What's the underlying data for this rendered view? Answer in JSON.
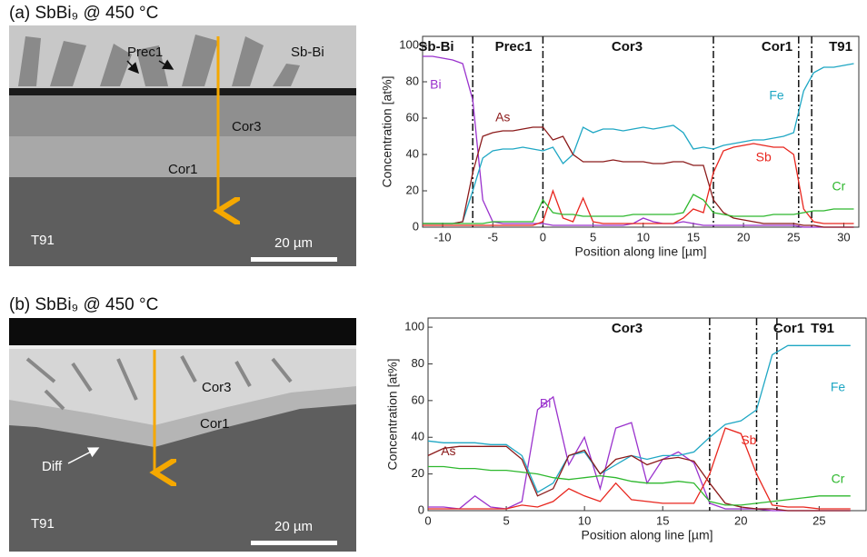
{
  "panels": [
    {
      "title": "(a) SbBi₉ @ 450 °C",
      "labels": [
        "Prec1",
        "Sb-Bi",
        "Cor3",
        "Cor1",
        "T91"
      ],
      "scale_bar": "20 µm"
    },
    {
      "title": "(b) SbBi₉ @ 450 °C",
      "labels": [
        "Cor3",
        "Cor1",
        "Diff",
        "T91"
      ],
      "scale_bar": "20 µm"
    }
  ],
  "chart_data": [
    {
      "type": "line",
      "xlabel": "Position along line [µm]",
      "ylabel": "Concentration [at%]",
      "xlim": [
        -12,
        31.5
      ],
      "ylim": [
        0,
        105
      ],
      "xticks": [
        -10,
        -5,
        0,
        5,
        10,
        15,
        20,
        25,
        30
      ],
      "yticks": [
        0,
        20,
        40,
        60,
        80,
        100
      ],
      "regions": [
        "Sb-Bi",
        "Prec1",
        "Cor3",
        "Cor1",
        "T91"
      ],
      "boundaries": [
        -7,
        0,
        17,
        25.5,
        26.8
      ],
      "x": [
        -12,
        -11,
        -10,
        -9,
        -8,
        -7,
        -6,
        -5,
        -4,
        -3,
        -2,
        -1,
        0,
        1,
        2,
        3,
        4,
        5,
        6,
        7,
        8,
        9,
        10,
        11,
        12,
        13,
        14,
        15,
        16,
        17,
        18,
        19,
        20,
        21,
        22,
        23,
        24,
        25,
        26,
        27,
        28,
        29,
        30,
        31
      ],
      "series": [
        {
          "name": "Bi",
          "color": "#9a32cd",
          "values": [
            94,
            94,
            93,
            92,
            90,
            70,
            15,
            3,
            2,
            2,
            2,
            2,
            2,
            1,
            1,
            1,
            1,
            1,
            1,
            1,
            1,
            2,
            5,
            3,
            2,
            2,
            3,
            2,
            1,
            1,
            1,
            1,
            1,
            1,
            1,
            1,
            1,
            1,
            0,
            0,
            0,
            0,
            0,
            0
          ]
        },
        {
          "name": "Fe",
          "color": "#1fa7c4",
          "values": [
            2,
            2,
            2,
            2,
            3,
            20,
            38,
            42,
            43,
            43,
            44,
            43,
            42,
            44,
            35,
            40,
            55,
            52,
            54,
            54,
            53,
            54,
            55,
            54,
            55,
            56,
            52,
            43,
            44,
            43,
            45,
            46,
            47,
            48,
            48,
            49,
            50,
            52,
            75,
            85,
            88,
            88,
            89,
            90
          ]
        },
        {
          "name": "As",
          "color": "#8b1a1a",
          "values": [
            2,
            2,
            2,
            2,
            3,
            30,
            50,
            52,
            53,
            53,
            54,
            55,
            55,
            48,
            50,
            40,
            36,
            36,
            36,
            37,
            36,
            36,
            36,
            35,
            35,
            36,
            36,
            34,
            34,
            15,
            8,
            5,
            4,
            3,
            2,
            2,
            2,
            2,
            1,
            1,
            0,
            0,
            0,
            0
          ]
        },
        {
          "name": "Sb",
          "color": "#e8261e",
          "values": [
            1,
            1,
            1,
            1,
            1,
            1,
            1,
            1,
            1,
            1,
            1,
            1,
            3,
            20,
            5,
            3,
            16,
            3,
            2,
            2,
            2,
            2,
            2,
            2,
            2,
            2,
            5,
            10,
            8,
            30,
            42,
            44,
            45,
            46,
            45,
            44,
            44,
            40,
            10,
            3,
            2,
            2,
            2,
            2
          ]
        },
        {
          "name": "Cr",
          "color": "#2eb82e",
          "values": [
            2,
            2,
            2,
            2,
            2,
            2,
            2,
            3,
            3,
            3,
            3,
            3,
            15,
            8,
            7,
            7,
            6,
            6,
            6,
            6,
            6,
            7,
            7,
            7,
            7,
            7,
            8,
            18,
            15,
            8,
            7,
            6,
            6,
            6,
            6,
            7,
            7,
            7,
            8,
            9,
            9,
            10,
            10,
            10
          ]
        }
      ]
    },
    {
      "type": "line",
      "xlabel": "Position along line [µm]",
      "ylabel": "Concentration [at%]",
      "xlim": [
        0,
        28
      ],
      "ylim": [
        0,
        105
      ],
      "xticks": [
        0,
        5,
        10,
        15,
        20,
        25
      ],
      "yticks": [
        0,
        20,
        40,
        60,
        80,
        100
      ],
      "regions": [
        "Cor3",
        "Cor1",
        "T91"
      ],
      "boundaries": [
        18,
        21,
        22.3
      ],
      "x": [
        0,
        1,
        2,
        3,
        4,
        5,
        6,
        7,
        8,
        9,
        10,
        11,
        12,
        13,
        14,
        15,
        16,
        17,
        18,
        19,
        20,
        21,
        22,
        23,
        24,
        25,
        26,
        27
      ],
      "series": [
        {
          "name": "Bi",
          "color": "#9a32cd",
          "values": [
            2,
            2,
            1,
            8,
            2,
            1,
            5,
            55,
            62,
            25,
            40,
            12,
            45,
            48,
            15,
            28,
            32,
            26,
            4,
            1,
            1,
            1,
            0,
            0,
            0,
            0,
            0,
            0
          ]
        },
        {
          "name": "Fe",
          "color": "#1fa7c4",
          "values": [
            38,
            37,
            37,
            37,
            36,
            36,
            30,
            10,
            15,
            30,
            32,
            20,
            25,
            30,
            28,
            30,
            30,
            32,
            40,
            47,
            49,
            55,
            85,
            90,
            90,
            90,
            90,
            90
          ]
        },
        {
          "name": "As",
          "color": "#8b1a1a",
          "values": [
            30,
            34,
            35,
            35,
            35,
            35,
            28,
            8,
            12,
            30,
            33,
            20,
            28,
            30,
            25,
            28,
            29,
            27,
            15,
            4,
            2,
            1,
            1,
            0,
            0,
            0,
            0,
            0
          ]
        },
        {
          "name": "Sb",
          "color": "#e8261e",
          "values": [
            1,
            1,
            1,
            1,
            1,
            1,
            3,
            2,
            5,
            12,
            8,
            5,
            15,
            6,
            5,
            4,
            4,
            4,
            20,
            45,
            42,
            20,
            3,
            2,
            2,
            1,
            1,
            1
          ]
        },
        {
          "name": "Cr",
          "color": "#2eb82e",
          "values": [
            24,
            24,
            23,
            23,
            22,
            22,
            21,
            20,
            18,
            17,
            18,
            19,
            18,
            16,
            15,
            15,
            16,
            15,
            5,
            3,
            3,
            4,
            5,
            6,
            7,
            8,
            8,
            8
          ]
        }
      ]
    }
  ]
}
